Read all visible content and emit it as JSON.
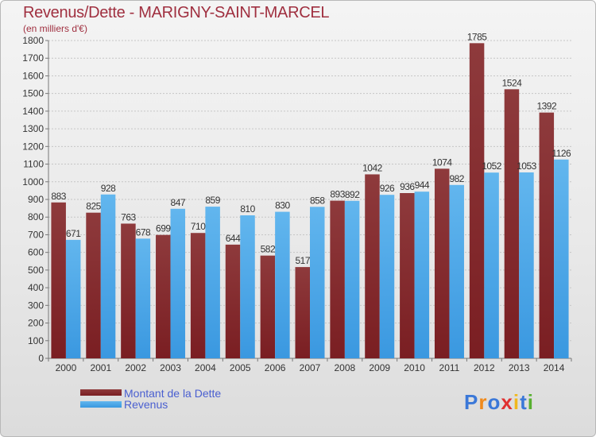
{
  "title": "Revenus/Dette - MARIGNY-SAINT-MARCEL",
  "subtitle": "(en milliers d'€)",
  "logo": {
    "text": "Proxiti",
    "letter_colors": [
      "#3b78d8",
      "#f08a1c",
      "#3b78d8",
      "#e03030",
      "#f0b81c",
      "#3b78d8",
      "#58b030"
    ]
  },
  "colors": {
    "dette": "#7a1e22",
    "dette_light": "#8e3a3c",
    "revenus": "#3a98e0",
    "revenus_light": "#62b6ee",
    "text": "#333333"
  },
  "chart_data": {
    "type": "bar",
    "categories": [
      "2000",
      "2001",
      "2002",
      "2003",
      "2004",
      "2005",
      "2006",
      "2007",
      "2008",
      "2009",
      "2010",
      "2011",
      "2012",
      "2013",
      "2014"
    ],
    "series": [
      {
        "name": "Montant de la Dette",
        "values": [
          883,
          825,
          763,
          699,
          710,
          644,
          582,
          517,
          893,
          1042,
          936,
          1074,
          1785,
          1524,
          1392
        ]
      },
      {
        "name": "Revenus",
        "values": [
          671,
          928,
          678,
          847,
          859,
          810,
          830,
          858,
          892,
          926,
          944,
          982,
          1052,
          1053,
          1126
        ]
      }
    ],
    "ylim": [
      0,
      1800
    ],
    "ytick_step": 100,
    "grid": true,
    "legend_position": "bottom-left"
  }
}
